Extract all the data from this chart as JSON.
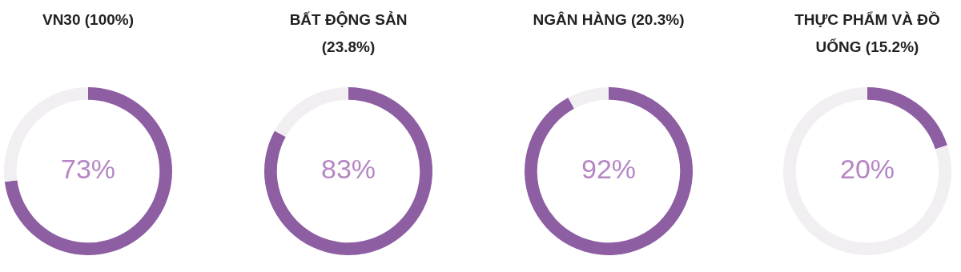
{
  "chart_data": [
    {
      "type": "donut",
      "title": "VN30 (100%)",
      "categories": [
        null,
        null
      ],
      "values": [
        73,
        27
      ],
      "colors": [
        "#8e5ea2",
        "#f2eff3"
      ],
      "annotations": [
        "73%"
      ]
    },
    {
      "type": "donut",
      "title": "BẤT ĐỘNG SẢN (23.8%)",
      "categories": [
        null,
        null
      ],
      "values": [
        83,
        17
      ],
      "colors": [
        "#8e5ea2",
        "#f2eff3"
      ],
      "annotations": [
        "83%"
      ]
    },
    {
      "type": "donut",
      "title": "NGÂN HÀNG (20.3%)",
      "categories": [
        null,
        null
      ],
      "values": [
        92,
        8
      ],
      "colors": [
        "#8e5ea2",
        "#f2eff3"
      ],
      "annotations": [
        "92%"
      ]
    },
    {
      "type": "donut",
      "title": "THỰC PHẨM VÀ ĐỒ UỐNG (15.2%)",
      "categories": [
        null,
        null
      ],
      "values": [
        20,
        80
      ],
      "colors": [
        "#8e5ea2",
        "#f2eff3"
      ],
      "annotations": [
        "20%"
      ]
    }
  ]
}
